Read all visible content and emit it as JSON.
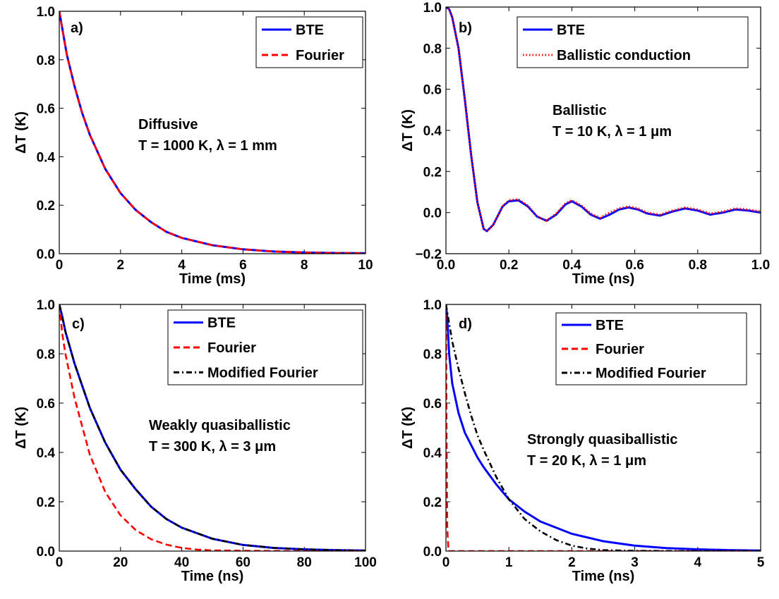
{
  "chart_data": [
    {
      "type": "line",
      "panel_label": "a)",
      "xlabel": "Time (ms)",
      "ylabel": "ΔT (K)",
      "xlim": [
        0,
        10
      ],
      "ylim": [
        0,
        1
      ],
      "xticks": [
        0,
        2,
        4,
        6,
        8,
        10
      ],
      "xtick_labels": [
        "0",
        "2",
        "4",
        "6",
        "8",
        "10"
      ],
      "yticks": [
        0,
        0.2,
        0.4,
        0.6,
        0.8,
        1.0
      ],
      "ytick_labels": [
        "0.0",
        "0.2",
        "0.4",
        "0.6",
        "0.8",
        "1.0"
      ],
      "legend_position": "top-right",
      "annotation": [
        "Diffusive",
        "T = 1000 K, λ = 1 mm"
      ],
      "series": [
        {
          "name": "BTE",
          "color": "#0000ff",
          "style": "solid",
          "x": [
            0,
            0.25,
            0.5,
            0.75,
            1,
            1.5,
            2,
            2.5,
            3,
            3.5,
            4,
            5,
            6,
            7,
            8,
            9,
            10
          ],
          "y": [
            1.0,
            0.82,
            0.69,
            0.58,
            0.49,
            0.35,
            0.25,
            0.18,
            0.13,
            0.09,
            0.065,
            0.035,
            0.018,
            0.009,
            0.005,
            0.003,
            0.002
          ]
        },
        {
          "name": "Fourier",
          "color": "#ff0000",
          "style": "dashed",
          "x": [
            0,
            0.25,
            0.5,
            0.75,
            1,
            1.5,
            2,
            2.5,
            3,
            3.5,
            4,
            5,
            6,
            7,
            8,
            9,
            10
          ],
          "y": [
            1.0,
            0.82,
            0.69,
            0.58,
            0.49,
            0.35,
            0.25,
            0.18,
            0.13,
            0.09,
            0.065,
            0.035,
            0.018,
            0.009,
            0.005,
            0.003,
            0.002
          ]
        }
      ]
    },
    {
      "type": "line",
      "panel_label": "b)",
      "xlabel": "Time (ns)",
      "ylabel": "ΔT (K)",
      "xlim": [
        0,
        1
      ],
      "ylim": [
        -0.2,
        1
      ],
      "xticks": [
        0,
        0.2,
        0.4,
        0.6,
        0.8,
        1.0
      ],
      "xtick_labels": [
        "0.0",
        "0.2",
        "0.4",
        "0.6",
        "0.8",
        "1.0"
      ],
      "yticks": [
        -0.2,
        0,
        0.2,
        0.4,
        0.6,
        0.8,
        1.0
      ],
      "ytick_labels": [
        "−0.2",
        "0.0",
        "0.2",
        "0.4",
        "0.6",
        "0.8",
        "1.0"
      ],
      "legend_position": "top-right",
      "annotation": [
        "Ballistic",
        "T = 10 K, λ = 1 μm"
      ],
      "series": [
        {
          "name": "BTE",
          "color": "#0000ff",
          "style": "solid",
          "x": [
            0,
            0.01,
            0.02,
            0.04,
            0.06,
            0.08,
            0.1,
            0.12,
            0.13,
            0.15,
            0.18,
            0.2,
            0.23,
            0.26,
            0.29,
            0.32,
            0.35,
            0.38,
            0.4,
            0.43,
            0.46,
            0.49,
            0.52,
            0.55,
            0.58,
            0.61,
            0.64,
            0.68,
            0.72,
            0.76,
            0.8,
            0.84,
            0.88,
            0.92,
            0.96,
            1.0
          ],
          "y": [
            1.0,
            0.99,
            0.95,
            0.8,
            0.55,
            0.28,
            0.05,
            -0.08,
            -0.09,
            -0.06,
            0.03,
            0.055,
            0.06,
            0.03,
            -0.02,
            -0.04,
            -0.01,
            0.04,
            0.055,
            0.03,
            -0.01,
            -0.03,
            -0.01,
            0.015,
            0.025,
            0.015,
            -0.005,
            -0.015,
            0.005,
            0.02,
            0.01,
            -0.01,
            0.0,
            0.015,
            0.01,
            0.0
          ]
        },
        {
          "name": "Ballistic conduction",
          "color": "#ff0000",
          "style": "dotted",
          "x": [
            0,
            0.01,
            0.02,
            0.04,
            0.06,
            0.08,
            0.1,
            0.12,
            0.13,
            0.15,
            0.18,
            0.2,
            0.23,
            0.26,
            0.29,
            0.32,
            0.35,
            0.38,
            0.4,
            0.43,
            0.46,
            0.49,
            0.52,
            0.55,
            0.58,
            0.61,
            0.64,
            0.68,
            0.72,
            0.76,
            0.8,
            0.84,
            0.88,
            0.92,
            0.96,
            1.0
          ],
          "y": [
            1.0,
            0.99,
            0.95,
            0.8,
            0.55,
            0.28,
            0.05,
            -0.08,
            -0.09,
            -0.06,
            0.03,
            0.06,
            0.065,
            0.035,
            -0.02,
            -0.04,
            -0.005,
            0.045,
            0.06,
            0.035,
            -0.005,
            -0.025,
            0.0,
            0.02,
            0.03,
            0.02,
            0.0,
            -0.01,
            0.01,
            0.025,
            0.015,
            -0.005,
            0.005,
            0.02,
            0.015,
            0.005
          ]
        }
      ]
    },
    {
      "type": "line",
      "panel_label": "c)",
      "xlabel": "Time (ns)",
      "ylabel": "ΔT (K)",
      "xlim": [
        0,
        100
      ],
      "ylim": [
        0,
        1
      ],
      "xticks": [
        0,
        20,
        40,
        60,
        80,
        100
      ],
      "xtick_labels": [
        "0",
        "20",
        "40",
        "60",
        "80",
        "100"
      ],
      "yticks": [
        0,
        0.2,
        0.4,
        0.6,
        0.8,
        1.0
      ],
      "ytick_labels": [
        "0.0",
        "0.2",
        "0.4",
        "0.6",
        "0.8",
        "1.0"
      ],
      "legend_position": "top-right",
      "annotation": [
        "Weakly quasiballistic",
        "T = 300 K, λ = 3 μm"
      ],
      "series": [
        {
          "name": "BTE",
          "color": "#0000ff",
          "style": "solid",
          "x": [
            0,
            1,
            2,
            5,
            10,
            15,
            20,
            25,
            30,
            35,
            40,
            50,
            60,
            70,
            80,
            90,
            100
          ],
          "y": [
            1.0,
            0.95,
            0.89,
            0.76,
            0.58,
            0.44,
            0.33,
            0.25,
            0.18,
            0.13,
            0.095,
            0.05,
            0.025,
            0.013,
            0.007,
            0.004,
            0.002
          ]
        },
        {
          "name": "Fourier",
          "color": "#ff0000",
          "style": "dashed",
          "x": [
            0,
            1,
            2,
            5,
            10,
            15,
            20,
            25,
            30,
            35,
            40,
            45,
            50,
            60,
            80,
            100
          ],
          "y": [
            1.0,
            0.88,
            0.8,
            0.62,
            0.39,
            0.24,
            0.145,
            0.085,
            0.048,
            0.026,
            0.013,
            0.006,
            0.003,
            0.001,
            0.0,
            0.0
          ]
        },
        {
          "name": "Modified Fourier",
          "color": "#000000",
          "style": "dashdot",
          "x": [
            0,
            1,
            2,
            5,
            10,
            15,
            20,
            25,
            30,
            35,
            40,
            50,
            60,
            70,
            80,
            90,
            100
          ],
          "y": [
            1.0,
            0.95,
            0.89,
            0.76,
            0.58,
            0.44,
            0.33,
            0.25,
            0.18,
            0.13,
            0.095,
            0.05,
            0.025,
            0.013,
            0.007,
            0.004,
            0.002
          ]
        }
      ]
    },
    {
      "type": "line",
      "panel_label": "d)",
      "xlabel": "Time (ns)",
      "ylabel": "ΔT (K)",
      "xlim": [
        0,
        5
      ],
      "ylim": [
        0,
        1
      ],
      "xticks": [
        0,
        1,
        2,
        3,
        4,
        5
      ],
      "xtick_labels": [
        "0",
        "1",
        "2",
        "3",
        "4",
        "5"
      ],
      "yticks": [
        0,
        0.2,
        0.4,
        0.6,
        0.8,
        1.0
      ],
      "ytick_labels": [
        "0.0",
        "0.2",
        "0.4",
        "0.6",
        "0.8",
        "1.0"
      ],
      "legend_position": "top-right",
      "annotation": [
        "Strongly quasiballistic",
        "T = 20 K, λ = 1 μm"
      ],
      "series": [
        {
          "name": "BTE",
          "color": "#0000ff",
          "style": "solid",
          "x": [
            0,
            0.02,
            0.05,
            0.1,
            0.2,
            0.3,
            0.4,
            0.5,
            0.6,
            0.8,
            1.0,
            1.25,
            1.5,
            2.0,
            2.5,
            3.0,
            3.5,
            4.0,
            4.5,
            5.0
          ],
          "y": [
            1.0,
            0.95,
            0.8,
            0.68,
            0.56,
            0.48,
            0.43,
            0.38,
            0.34,
            0.27,
            0.21,
            0.16,
            0.12,
            0.07,
            0.04,
            0.022,
            0.012,
            0.007,
            0.004,
            0.002
          ]
        },
        {
          "name": "Fourier",
          "color": "#ff0000",
          "style": "dashed",
          "x": [
            0,
            0.01,
            0.02,
            0.04,
            0.1,
            1,
            2,
            3,
            4,
            5
          ],
          "y": [
            1.0,
            0.5,
            0.1,
            0.0,
            0.0,
            0.0,
            0.0,
            0.0,
            0.0,
            0.0
          ]
        },
        {
          "name": "Modified Fourier",
          "color": "#000000",
          "style": "dashdot",
          "x": [
            0,
            0.1,
            0.2,
            0.3,
            0.4,
            0.5,
            0.6,
            0.8,
            1.0,
            1.25,
            1.5,
            1.75,
            2.0,
            2.25,
            2.5,
            3.0,
            4.0,
            5.0
          ],
          "y": [
            1.0,
            0.85,
            0.74,
            0.64,
            0.55,
            0.47,
            0.41,
            0.3,
            0.21,
            0.13,
            0.08,
            0.045,
            0.022,
            0.01,
            0.004,
            0.001,
            0.0,
            0.0
          ]
        }
      ]
    }
  ]
}
